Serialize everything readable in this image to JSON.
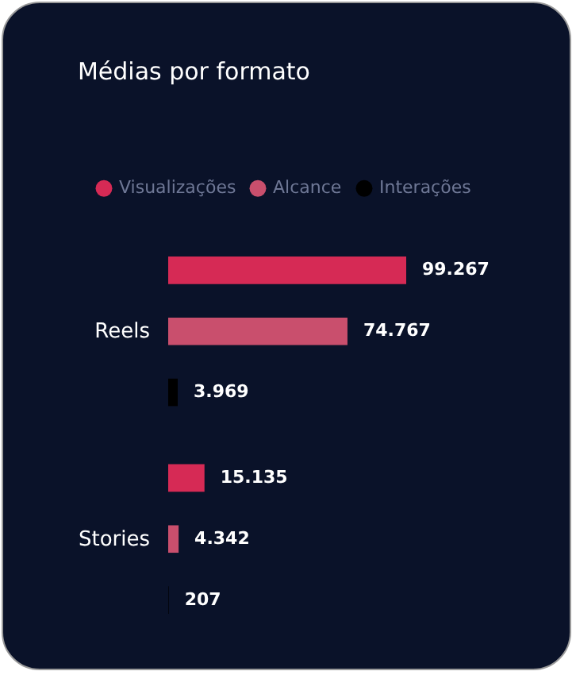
{
  "chart_data": {
    "type": "bar",
    "orientation": "horizontal",
    "title": "Médias por formato",
    "categories": [
      "Reels",
      "Stories"
    ],
    "series": [
      {
        "name": "Visualizações",
        "color": "#d62a55",
        "values": [
          99267,
          15135
        ],
        "value_labels": [
          "99.267",
          "15.135"
        ]
      },
      {
        "name": "Alcance",
        "color": "#c94f6d",
        "values": [
          74767,
          4342
        ],
        "value_labels": [
          "74.767",
          "4.342"
        ]
      },
      {
        "name": "Interações",
        "color": "#000000",
        "values": [
          3969,
          207
        ],
        "value_labels": [
          "3.969",
          "207"
        ]
      }
    ],
    "legend": "top left"
  }
}
